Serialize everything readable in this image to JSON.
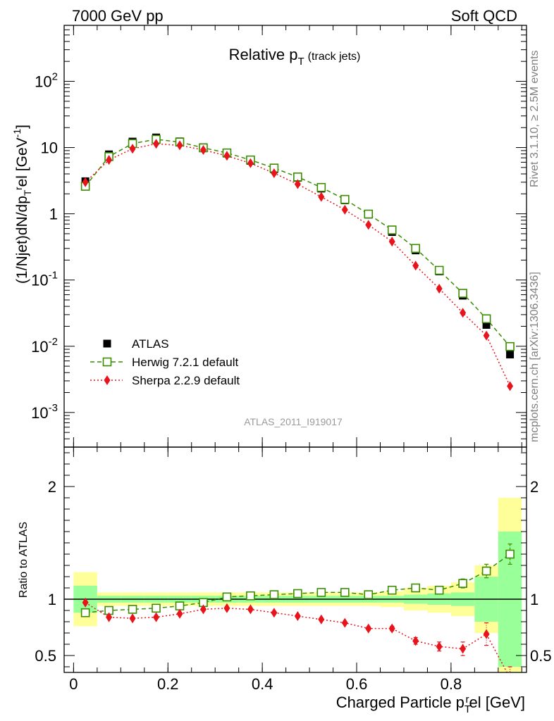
{
  "header": {
    "left": "7000 GeV pp",
    "right": "Soft QCD"
  },
  "side_labels": {
    "top": "Rivet 3.1.10, ≥ 2.5M events",
    "bottom": "mcplots.cern.ch [arXiv:1306.3436]"
  },
  "chart_data": {
    "type": "scatter",
    "title": "Relative p",
    "title_sub": "T",
    "title_suffix": "(track jets)",
    "analysis_tag": "ATLAS_2011_I919017",
    "xlabel": "Charged Particle p",
    "xlabel_sub": "T",
    "xlabel_sup": "r",
    "xlabel_suffix": "el [GeV]",
    "ylabel": "(1/Njet)dN/dp",
    "ylabel_sub": "T",
    "ylabel_sup": "r",
    "ylabel_suffix": "el [GeV",
    "ylabel_unit_sup": "-1",
    "ylabel_end": "]",
    "ratio_ylabel": "Ratio to ATLAS",
    "xlim": [
      -0.02,
      0.96
    ],
    "ylim": [
      0.0003,
      700
    ],
    "yscale": "log",
    "ratio_ylim": [
      0.35,
      2.35
    ],
    "x_ticks": [
      "0",
      "0.2",
      "0.4",
      "0.6",
      "0.8"
    ],
    "y_ticks": [
      "10-3",
      "10-2",
      "10-1",
      "1",
      "10",
      "102"
    ],
    "ratio_ticks": [
      "0.5",
      "1",
      "2"
    ],
    "legend_position": "bottom-left",
    "x": [
      0.025,
      0.075,
      0.125,
      0.175,
      0.225,
      0.275,
      0.325,
      0.375,
      0.425,
      0.475,
      0.525,
      0.575,
      0.625,
      0.675,
      0.725,
      0.775,
      0.825,
      0.875,
      0.925
    ],
    "series": [
      {
        "name": "ATLAS",
        "color": "#000000",
        "marker": "filled-square",
        "values": [
          3.1,
          7.9,
          12.3,
          14.2,
          12.4,
          10.1,
          8.1,
          6.3,
          4.7,
          3.5,
          2.4,
          1.6,
          0.97,
          0.53,
          0.28,
          0.135,
          0.058,
          0.021,
          0.0075
        ]
      },
      {
        "name": "Herwig 7.2.1 default",
        "color": "#3a8c00",
        "marker": "open-square",
        "line": "dashed",
        "values": [
          2.6,
          7.3,
          11.5,
          13.3,
          12.1,
          9.9,
          8.3,
          6.5,
          4.9,
          3.6,
          2.5,
          1.65,
          0.99,
          0.57,
          0.3,
          0.14,
          0.063,
          0.026,
          0.0099
        ]
      },
      {
        "name": "Sherpa 2.2.9 default",
        "color": "#e8141c",
        "marker": "filled-diamond",
        "line": "dotted",
        "values": [
          3.0,
          6.5,
          9.6,
          11.4,
          10.8,
          9.2,
          7.5,
          5.8,
          4.1,
          2.8,
          1.8,
          1.15,
          0.68,
          0.38,
          0.165,
          0.074,
          0.032,
          0.0145,
          0.0025
        ]
      }
    ],
    "ratio_series": [
      {
        "name": "Herwig 7.2.1 default",
        "values": [
          0.88,
          0.9,
          0.91,
          0.92,
          0.94,
          0.97,
          1.02,
          1.03,
          1.04,
          1.05,
          1.06,
          1.06,
          1.04,
          1.08,
          1.1,
          1.08,
          1.14,
          1.25,
          1.4
        ],
        "errors": [
          0.01,
          0.01,
          0.01,
          0.01,
          0.01,
          0.01,
          0.01,
          0.01,
          0.01,
          0.01,
          0.01,
          0.01,
          0.01,
          0.015,
          0.02,
          0.03,
          0.04,
          0.06,
          0.09
        ]
      },
      {
        "name": "Sherpa 2.2.9 default",
        "values": [
          0.97,
          0.84,
          0.83,
          0.84,
          0.87,
          0.91,
          0.92,
          0.91,
          0.88,
          0.85,
          0.82,
          0.79,
          0.74,
          0.74,
          0.63,
          0.58,
          0.56,
          0.69,
          0.3
        ],
        "errors": [
          0.01,
          0.01,
          0.01,
          0.01,
          0.01,
          0.01,
          0.01,
          0.01,
          0.01,
          0.01,
          0.01,
          0.01,
          0.015,
          0.02,
          0.03,
          0.04,
          0.06,
          0.1,
          0.1
        ]
      }
    ],
    "ratio_bands": {
      "bin_edges": [
        0.0,
        0.05,
        0.1,
        0.15,
        0.2,
        0.25,
        0.3,
        0.35,
        0.4,
        0.45,
        0.5,
        0.55,
        0.6,
        0.65,
        0.7,
        0.75,
        0.8,
        0.85,
        0.9,
        0.95
      ],
      "stat_halfwidth": [
        0.12,
        0.03,
        0.03,
        0.03,
        0.03,
        0.03,
        0.03,
        0.03,
        0.03,
        0.03,
        0.03,
        0.03,
        0.03,
        0.03,
        0.04,
        0.05,
        0.06,
        0.2,
        0.6
      ],
      "total_halfwidth": [
        0.24,
        0.06,
        0.06,
        0.06,
        0.06,
        0.06,
        0.06,
        0.06,
        0.06,
        0.06,
        0.06,
        0.06,
        0.06,
        0.07,
        0.1,
        0.12,
        0.15,
        0.3,
        0.9
      ],
      "stat_color": "#99ff99",
      "total_color": "#ffff99"
    }
  }
}
